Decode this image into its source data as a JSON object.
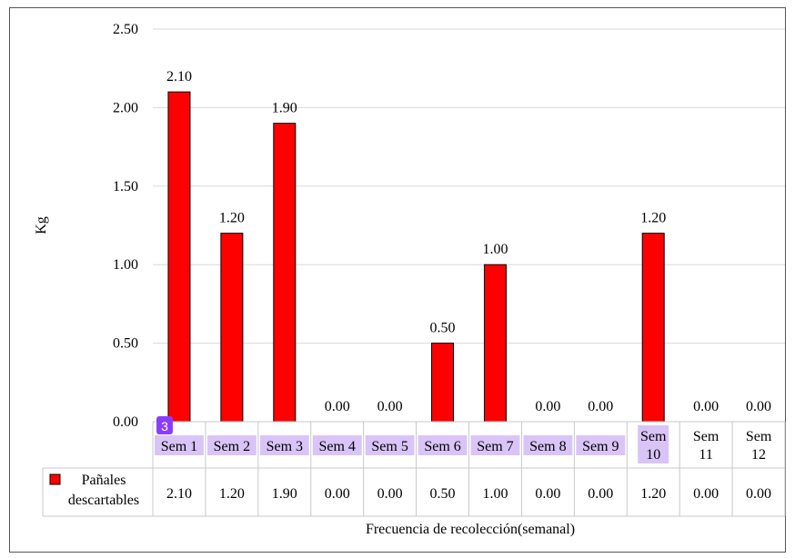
{
  "chart_data": {
    "type": "bar",
    "title": "",
    "ylabel": "Kg",
    "xlabel": "Frecuencia de recolección(semanal)",
    "ylim": [
      0,
      2.5
    ],
    "yticks": [
      "0.00",
      "0.50",
      "1.00",
      "1.50",
      "2.00",
      "2.50"
    ],
    "grid": true,
    "categories": [
      "Sem 1",
      "Sem 2",
      "Sem 3",
      "Sem 4",
      "Sem 5",
      "Sem 6",
      "Sem 7",
      "Sem 8",
      "Sem 9",
      "Sem 10",
      "Sem 11",
      "Sem 12"
    ],
    "series": [
      {
        "name": "Pañales descartables",
        "values": [
          2.1,
          1.2,
          1.9,
          0.0,
          0.0,
          0.5,
          1.0,
          0.0,
          0.0,
          1.2,
          0.0,
          0.0
        ],
        "labels": [
          "2.10",
          "1.20",
          "1.90",
          "0.00",
          "0.00",
          "0.50",
          "1.00",
          "0.00",
          "0.00",
          "1.20",
          "0.00",
          "0.00"
        ],
        "color": "#ff0000"
      }
    ],
    "legend": "data-table",
    "highlight_badge": "3",
    "highlight_color": "#d9c4f7",
    "badge_color": "#8b3dff"
  }
}
